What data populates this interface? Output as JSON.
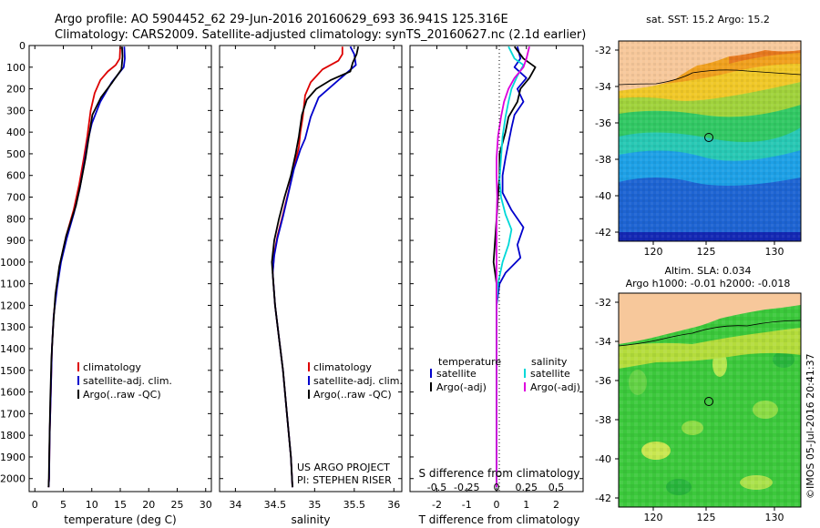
{
  "header": {
    "line1": "Argo profile: AO 5904452_62 29-Jun-2016 20160629_693 36.941S 125.316E",
    "line2": "Climatology: CARS2009. Satellite-adjusted climatology: synTS_20160627.nc (2.1d earlier)"
  },
  "colors": {
    "clim": "#dd0000",
    "sat": "#0000cc",
    "argo": "#000000",
    "sat_s": "#00d8d8",
    "argo_s": "#dd00dd"
  },
  "chart_data": [
    {
      "id": "temperature",
      "type": "line",
      "xlabel": "temperature (deg C)",
      "ylabel": "",
      "xlim": [
        -1,
        31
      ],
      "ylim": [
        2060,
        0
      ],
      "xticks": [
        0,
        5,
        10,
        15,
        20,
        25,
        30
      ],
      "yticks": [
        0,
        100,
        200,
        300,
        400,
        500,
        600,
        700,
        800,
        900,
        1000,
        1100,
        1200,
        1300,
        1400,
        1500,
        1600,
        1700,
        1800,
        1900,
        2000
      ],
      "legend": [
        "climatology",
        "satellite-adj. clim.",
        "Argo(..raw -QC)"
      ],
      "series": [
        {
          "name": "climatology",
          "color": "clim",
          "points": [
            [
              15.0,
              5
            ],
            [
              14.9,
              60
            ],
            [
              14.2,
              90
            ],
            [
              12.8,
              120
            ],
            [
              11.5,
              160
            ],
            [
              10.5,
              220
            ],
            [
              9.8,
              300
            ],
            [
              9.2,
              420
            ],
            [
              8.6,
              520
            ],
            [
              7.8,
              640
            ],
            [
              6.8,
              760
            ],
            [
              5.5,
              880
            ],
            [
              4.5,
              1000
            ],
            [
              3.8,
              1120
            ],
            [
              3.3,
              1250
            ],
            [
              3.0,
              1400
            ],
            [
              2.8,
              1600
            ],
            [
              2.6,
              1800
            ],
            [
              2.5,
              2000
            ],
            [
              2.4,
              2040
            ]
          ]
        },
        {
          "name": "satellite-adj. clim.",
          "color": "sat",
          "points": [
            [
              15.7,
              5
            ],
            [
              15.8,
              60
            ],
            [
              15.6,
              100
            ],
            [
              13.5,
              170
            ],
            [
              11.5,
              260
            ],
            [
              10.0,
              360
            ],
            [
              9.3,
              440
            ],
            [
              8.7,
              540
            ],
            [
              7.9,
              660
            ],
            [
              6.9,
              770
            ],
            [
              5.6,
              890
            ],
            [
              4.6,
              1000
            ],
            [
              3.9,
              1120
            ],
            [
              3.3,
              1250
            ],
            [
              3.0,
              1400
            ],
            [
              2.8,
              1600
            ],
            [
              2.6,
              1800
            ],
            [
              2.5,
              2000
            ],
            [
              2.4,
              2040
            ]
          ]
        },
        {
          "name": "Argo(..raw -QC)",
          "color": "argo",
          "points": [
            [
              15.3,
              5
            ],
            [
              15.4,
              50
            ],
            [
              15.2,
              110
            ],
            [
              13.6,
              170
            ],
            [
              11.6,
              240
            ],
            [
              10.1,
              320
            ],
            [
              9.5,
              420
            ],
            [
              8.9,
              520
            ],
            [
              8.1,
              630
            ],
            [
              7.2,
              740
            ],
            [
              5.5,
              880
            ],
            [
              4.3,
              1020
            ],
            [
              3.6,
              1150
            ],
            [
              3.2,
              1300
            ],
            [
              2.9,
              1450
            ],
            [
              2.7,
              1650
            ],
            [
              2.55,
              1850
            ],
            [
              2.45,
              2000
            ],
            [
              2.4,
              2040
            ]
          ]
        }
      ]
    },
    {
      "id": "salinity",
      "type": "line",
      "xlabel": "salinity",
      "ylabel": "",
      "xlim": [
        33.8,
        36.1
      ],
      "ylim": [
        2060,
        0
      ],
      "xticks": [
        34,
        34.5,
        35,
        35.5,
        36
      ],
      "xtick_labels": [
        "34",
        "34.5",
        "35",
        "35.5",
        "36"
      ],
      "legend": [
        "climatology",
        "satellite-adj. clim.",
        "Argo(..raw -QC)"
      ],
      "series": [
        {
          "name": "climatology",
          "color": "clim",
          "points": [
            [
              35.35,
              5
            ],
            [
              35.35,
              40
            ],
            [
              35.3,
              70
            ],
            [
              35.1,
              110
            ],
            [
              34.95,
              170
            ],
            [
              34.88,
              230
            ],
            [
              34.85,
              330
            ],
            [
              34.82,
              400
            ],
            [
              34.8,
              470
            ],
            [
              34.74,
              560
            ],
            [
              34.68,
              660
            ],
            [
              34.6,
              780
            ],
            [
              34.53,
              880
            ],
            [
              34.49,
              960
            ],
            [
              34.47,
              1050
            ],
            [
              34.5,
              1200
            ],
            [
              34.55,
              1350
            ],
            [
              34.6,
              1500
            ],
            [
              34.65,
              1700
            ],
            [
              34.7,
              1900
            ],
            [
              34.72,
              2040
            ]
          ]
        },
        {
          "name": "satellite-adj. clim.",
          "color": "sat",
          "points": [
            [
              35.45,
              5
            ],
            [
              35.5,
              40
            ],
            [
              35.52,
              90
            ],
            [
              35.3,
              160
            ],
            [
              35.05,
              240
            ],
            [
              34.95,
              330
            ],
            [
              34.88,
              430
            ],
            [
              34.82,
              480
            ],
            [
              34.74,
              570
            ],
            [
              34.67,
              680
            ],
            [
              34.6,
              790
            ],
            [
              34.53,
              890
            ],
            [
              34.49,
              970
            ],
            [
              34.47,
              1050
            ],
            [
              34.5,
              1200
            ],
            [
              34.55,
              1350
            ],
            [
              34.6,
              1500
            ],
            [
              34.65,
              1700
            ],
            [
              34.7,
              1900
            ],
            [
              34.72,
              2040
            ]
          ]
        },
        {
          "name": "Argo(..raw -QC)",
          "color": "argo",
          "points": [
            [
              35.55,
              5
            ],
            [
              35.53,
              40
            ],
            [
              35.48,
              80
            ],
            [
              35.45,
              120
            ],
            [
              35.2,
              160
            ],
            [
              35.02,
              200
            ],
            [
              34.9,
              250
            ],
            [
              34.84,
              320
            ],
            [
              34.8,
              420
            ],
            [
              34.76,
              500
            ],
            [
              34.7,
              600
            ],
            [
              34.62,
              700
            ],
            [
              34.55,
              800
            ],
            [
              34.49,
              900
            ],
            [
              34.46,
              1000
            ],
            [
              34.48,
              1100
            ],
            [
              34.5,
              1200
            ],
            [
              34.55,
              1350
            ],
            [
              34.6,
              1500
            ],
            [
              34.65,
              1700
            ],
            [
              34.7,
              1900
            ],
            [
              34.72,
              2040
            ]
          ]
        }
      ],
      "annotations": [
        "US ARGO PROJECT",
        "PI: STEPHEN RISER"
      ]
    },
    {
      "id": "differences",
      "type": "line",
      "xlabel": "T difference from climatology",
      "xlabel_top": "S difference from climatology",
      "xlim": [
        -2.9,
        2.9
      ],
      "ylim": [
        2060,
        0
      ],
      "xticks": [
        -2,
        -1,
        0,
        1,
        2
      ],
      "xticks_s": [
        -0.5,
        -0.25,
        0,
        0.25,
        0.5
      ],
      "xticks_s_labels": [
        "-0.5",
        "-0.25",
        "0",
        "0.25",
        "0.5"
      ],
      "legend_temperature": {
        "title": "temperature",
        "items": [
          "satellite",
          "Argo(-adj)"
        ]
      },
      "legend_salinity": {
        "title": "salinity",
        "items": [
          "satellite",
          "Argo(-adj)"
        ]
      },
      "series": [
        {
          "name": "temperature satellite",
          "color": "sat",
          "points": [
            [
              0.7,
              5
            ],
            [
              0.8,
              60
            ],
            [
              0.6,
              100
            ],
            [
              1.0,
              150
            ],
            [
              0.7,
              200
            ],
            [
              0.9,
              260
            ],
            [
              0.6,
              320
            ],
            [
              0.5,
              380
            ],
            [
              0.4,
              450
            ],
            [
              0.3,
              520
            ],
            [
              0.2,
              600
            ],
            [
              0.2,
              680
            ],
            [
              0.5,
              760
            ],
            [
              0.9,
              840
            ],
            [
              0.7,
              920
            ],
            [
              0.8,
              980
            ],
            [
              0.3,
              1050
            ],
            [
              0.1,
              1100
            ],
            [
              0.0,
              1200
            ],
            [
              0.0,
              2040
            ]
          ]
        },
        {
          "name": "temperature Argo(-adj)",
          "color": "argo",
          "points": [
            [
              0.6,
              5
            ],
            [
              0.9,
              60
            ],
            [
              1.3,
              100
            ],
            [
              1.1,
              150
            ],
            [
              0.8,
              200
            ],
            [
              0.7,
              260
            ],
            [
              0.4,
              330
            ],
            [
              0.3,
              400
            ],
            [
              0.1,
              500
            ],
            [
              0.1,
              600
            ],
            [
              0.05,
              700
            ],
            [
              0.0,
              800
            ],
            [
              -0.05,
              900
            ],
            [
              -0.1,
              1000
            ],
            [
              -0.05,
              1050
            ],
            [
              0.0,
              1100
            ],
            [
              0.0,
              2040
            ]
          ]
        },
        {
          "name": "salinity satellite",
          "color": "sat_s",
          "points": [
            [
              0.4,
              5
            ],
            [
              0.6,
              60
            ],
            [
              0.9,
              90
            ],
            [
              0.7,
              140
            ],
            [
              0.5,
              200
            ],
            [
              0.4,
              260
            ],
            [
              0.3,
              330
            ],
            [
              0.2,
              420
            ],
            [
              0.15,
              520
            ],
            [
              0.1,
              620
            ],
            [
              0.15,
              700
            ],
            [
              0.3,
              780
            ],
            [
              0.5,
              850
            ],
            [
              0.4,
              920
            ],
            [
              0.2,
              1000
            ],
            [
              0.05,
              1100
            ],
            [
              0.0,
              1200
            ],
            [
              0.0,
              2040
            ]
          ]
        },
        {
          "name": "salinity Argo(-adj)",
          "color": "argo_s",
          "points": [
            [
              1.1,
              5
            ],
            [
              1.0,
              60
            ],
            [
              0.9,
              100
            ],
            [
              0.6,
              150
            ],
            [
              0.4,
              200
            ],
            [
              0.25,
              260
            ],
            [
              0.15,
              330
            ],
            [
              0.05,
              420
            ],
            [
              0.0,
              520
            ],
            [
              0.0,
              600
            ],
            [
              0.02,
              700
            ],
            [
              0.0,
              800
            ],
            [
              0.0,
              2040
            ]
          ]
        }
      ]
    }
  ],
  "maps": {
    "top": {
      "title": "sat. SST: 15.2 Argo: 15.2",
      "xticks": [
        "120",
        "125",
        "130"
      ],
      "yticks": [
        "-32",
        "-34",
        "-36",
        "-38",
        "-40",
        "-42"
      ],
      "marker": {
        "lon": 125.3,
        "lat": -36.9
      }
    },
    "bottom": {
      "title_line1": "Altim. SLA: 0.034",
      "title_line2": "Argo h1000: -0.01 h2000: -0.018",
      "xticks": [
        "120",
        "125",
        "130"
      ],
      "yticks": [
        "-32",
        "-34",
        "-36",
        "-38",
        "-40",
        "-42"
      ],
      "marker": {
        "lon": 125.3,
        "lat": -36.9
      }
    }
  },
  "credit": "©IMOS 05-Jul-2016 20:41:37"
}
